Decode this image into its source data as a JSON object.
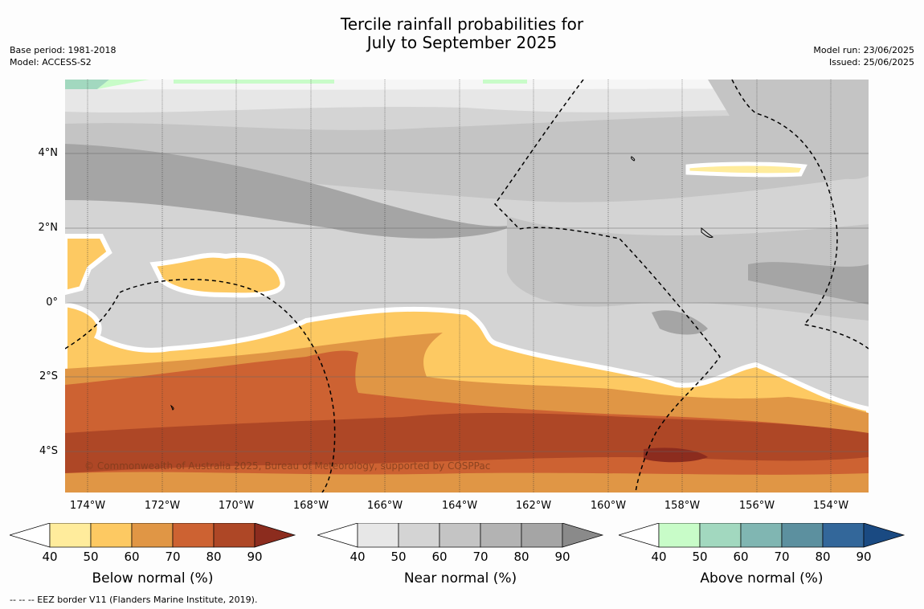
{
  "header": {
    "title_line1": "Tercile rainfall probabilities for",
    "title_line2": "July to September 2025",
    "base_period": "Base period: 1981-2018",
    "model": "Model: ACCESS-S2",
    "model_run": "Model run: 23/06/2025",
    "issued": "Issued: 25/06/2025"
  },
  "map": {
    "copyright": "© Commonwealth of Australia 2025, Bureau of Meteorology, supported by COSPPac",
    "lon_labels": [
      "174°W",
      "172°W",
      "170°W",
      "168°W",
      "166°W",
      "164°W",
      "162°W",
      "160°W",
      "158°W",
      "156°W",
      "154°W"
    ],
    "lat_labels": [
      "4°N",
      "2°N",
      "0°",
      "2°S",
      "4°S"
    ]
  },
  "colorbars": [
    {
      "label": "Below normal (%)",
      "ticks": [
        "40",
        "50",
        "60",
        "70",
        "80",
        "90"
      ],
      "colors": [
        "#ffffff",
        "#ffec9c",
        "#fdc962",
        "#e09645",
        "#cd6232",
        "#ae4726",
        "#8c2c1e"
      ]
    },
    {
      "label": "Near normal (%)",
      "ticks": [
        "40",
        "50",
        "60",
        "70",
        "80",
        "90"
      ],
      "colors": [
        "#ffffff",
        "#e7e7e7",
        "#d4d4d4",
        "#c4c4c4",
        "#b3b3b3",
        "#a5a5a5",
        "#8a8a8a"
      ]
    },
    {
      "label": "Above normal (%)",
      "ticks": [
        "40",
        "50",
        "60",
        "70",
        "80",
        "90"
      ],
      "colors": [
        "#ffffff",
        "#c8fcc8",
        "#a2d8bf",
        "#80b6b2",
        "#5c909f",
        "#33679a",
        "#1a4a82"
      ]
    }
  ],
  "footer": {
    "eez_note": "--  --  -- EEZ border V11 (Flanders Marine Institute, 2019)."
  }
}
